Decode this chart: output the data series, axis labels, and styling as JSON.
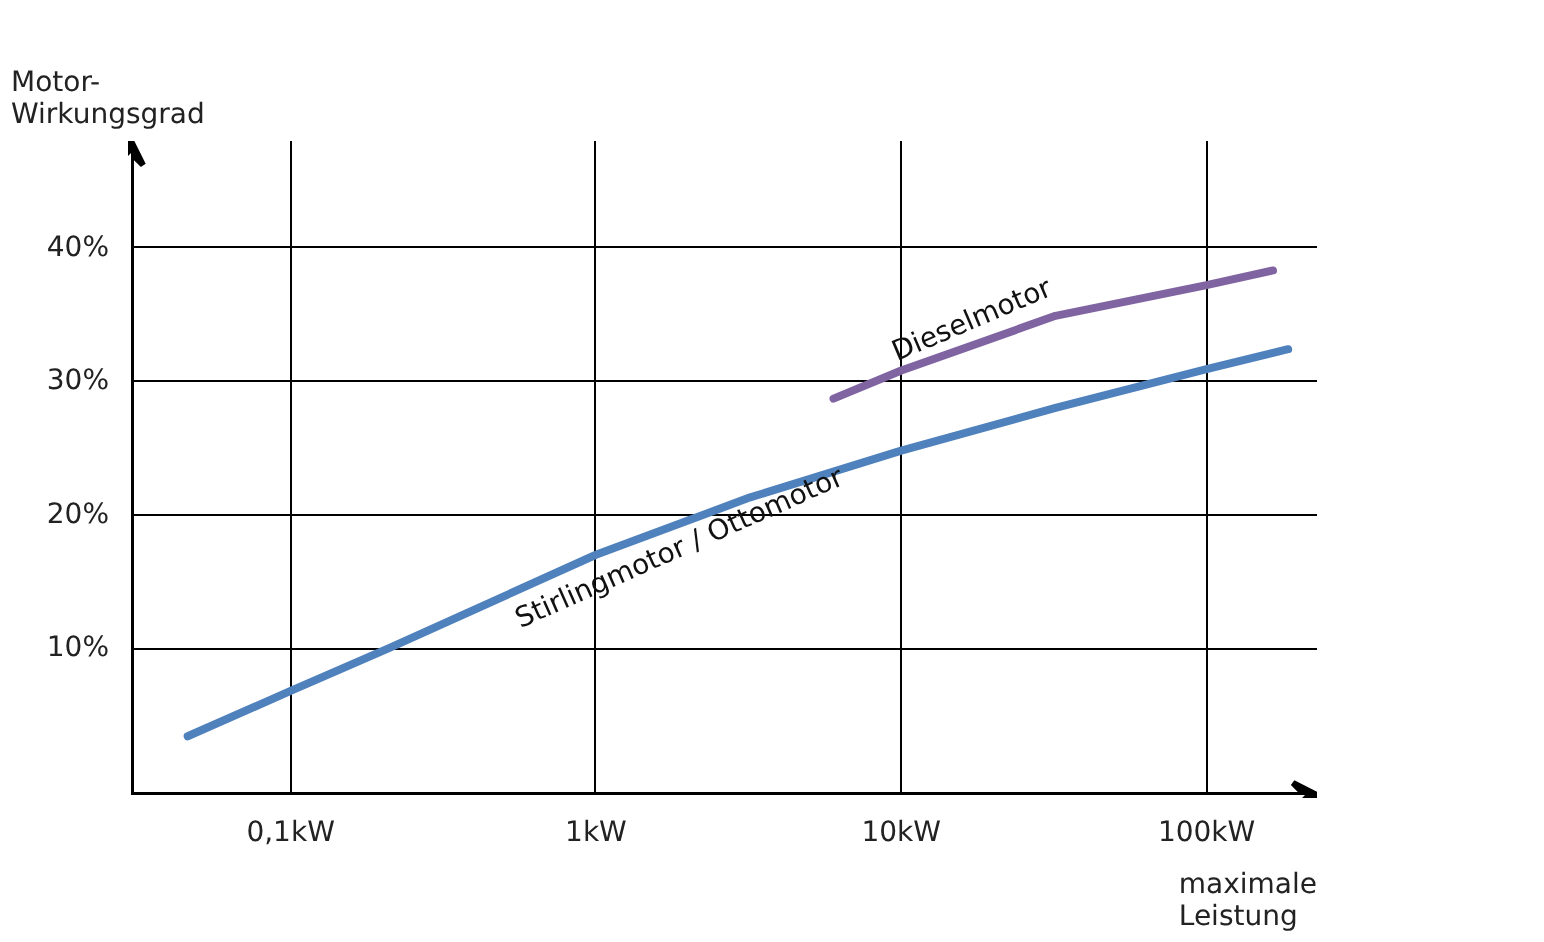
{
  "chart_data": {
    "type": "line",
    "xlabel": "maximale\nLeistung",
    "ylabel": "Motor-\nWirkungsgrad",
    "log": "x",
    "grid": true,
    "marker": "none",
    "line_style": "solid",
    "xlim": [
      0.03,
      230
    ],
    "ylim": [
      -1,
      48
    ],
    "xticks": [
      {
        "value": 0.1,
        "label": "0,1kW"
      },
      {
        "value": 1,
        "label": "1kW"
      },
      {
        "value": 10,
        "label": "10kW"
      },
      {
        "value": 100,
        "label": "100kW"
      }
    ],
    "yticks": [
      {
        "value": 10,
        "label": "10%"
      },
      {
        "value": 20,
        "label": "20%"
      },
      {
        "value": 30,
        "label": "30%"
      },
      {
        "value": 40,
        "label": "40%"
      }
    ],
    "series": [
      {
        "name": "Stirlingmotor / Ottomotor",
        "color": "#4f81bd",
        "x": [
          0.046,
          0.1,
          0.21,
          1,
          3.2,
          10,
          32,
          100,
          185
        ],
        "values": [
          3.4,
          6.8,
          10,
          17,
          21.3,
          24.8,
          28,
          30.9,
          32.4
        ]
      },
      {
        "name": "Dieselmotor",
        "color": "#8064a2",
        "x": [
          6,
          10,
          32,
          100,
          165
        ],
        "values": [
          28.7,
          30.8,
          34.9,
          37.2,
          38.3
        ]
      }
    ]
  }
}
